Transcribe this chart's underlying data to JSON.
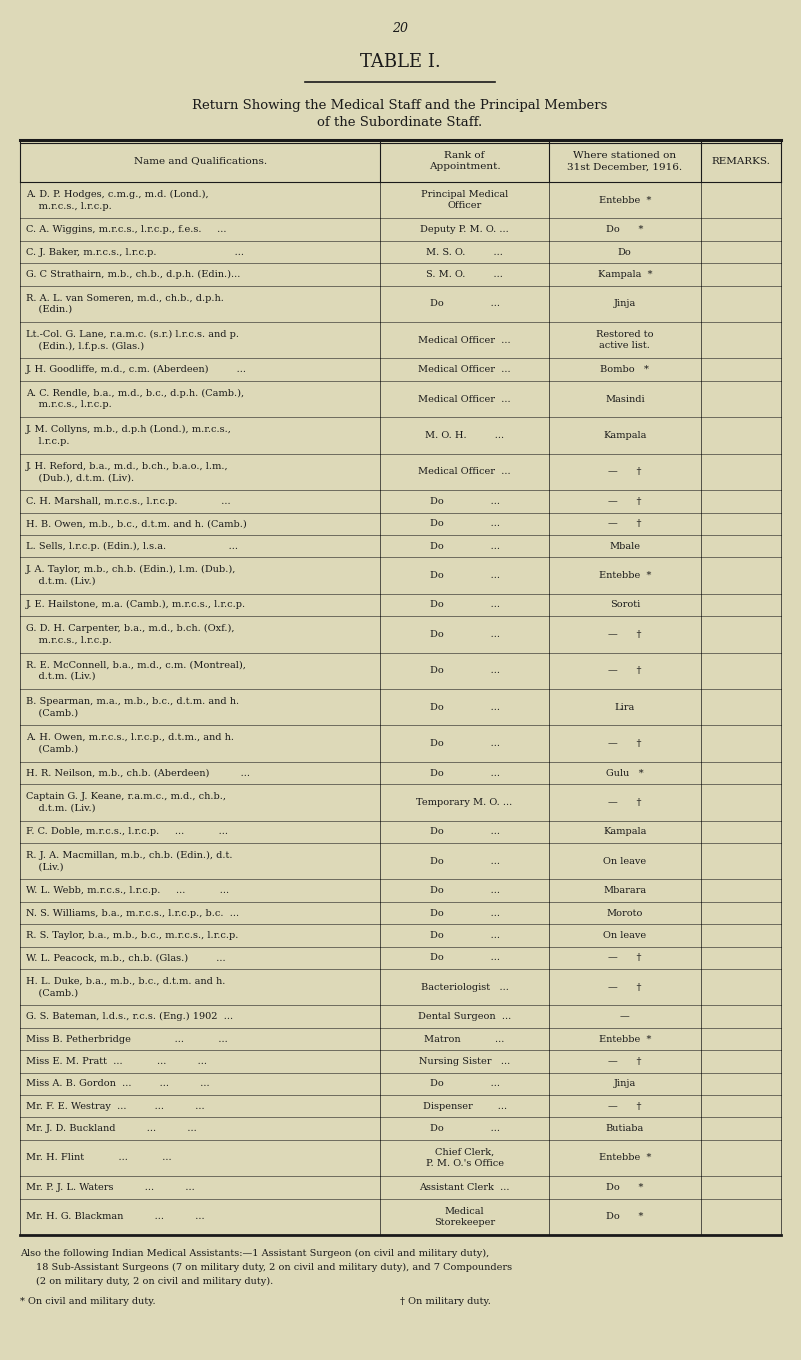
{
  "page_number": "20",
  "title": "TABLE I.",
  "subtitle_line1": "Return Showing the Medical Staff and the Principal Members",
  "subtitle_line2": "of the Subordinate Staff.",
  "bg_color": "#ddd9b8",
  "text_color": "#1a1a1a",
  "col_headers": [
    "Name and Qualifications.",
    "Rank of\nAppointment.",
    "Where stationed on\n31st December, 1916.",
    "REMARKS."
  ],
  "col_bounds": [
    0.025,
    0.475,
    0.685,
    0.875,
    0.975
  ],
  "rows": [
    [
      "A. D. P. Hodges, c.m.g., m.d. (Lond.),\n    m.r.c.s., l.r.c.p.",
      "Principal Medical\nOfficer",
      "Entebbe  *",
      ""
    ],
    [
      "C. A. Wiggins, m.r.c.s., l.r.c.p., f.e.s.     ...",
      "Deputy P. M. O. ...",
      "Do      *",
      ""
    ],
    [
      "C. J. Baker, m.r.c.s., l.r.c.p.                         ...",
      "M. S. O.         ...",
      "Do",
      ""
    ],
    [
      "G. C Strathairn, m.b., ch.b., d.p.h. (Edin.)...",
      "S. M. O.         ...",
      "Kampala  *",
      ""
    ],
    [
      "R. A. L. van Someren, m.d., ch.b., d.p.h.\n    (Edin.)",
      "Do               ...",
      "Jinja",
      ""
    ],
    [
      "Lt.-Col. G. Lane, r.a.m.c. (s.r.) l.r.c.s. and p.\n    (Edin.), l.f.p.s. (Glas.)",
      "Medical Officer  ...",
      "Restored to\nactive list.",
      ""
    ],
    [
      "J. H. Goodliffe, m.d., c.m. (Aberdeen)         ...",
      "Medical Officer  ...",
      "Bombo   *",
      ""
    ],
    [
      "A. C. Rendle, b.a., m.d., b.c., d.p.h. (Camb.),\n    m.r.c.s., l.r.c.p.",
      "Medical Officer  ...",
      "Masindi",
      ""
    ],
    [
      "J. M. Collyns, m.b., d.p.h (Lond.), m.r.c.s.,\n    l.r.c.p.",
      "M. O. H.         ...",
      "Kampala",
      ""
    ],
    [
      "J. H. Reford, b.a., m.d., b.ch., b.a.o., l.m.,\n    (Dub.), d.t.m. (Liv).",
      "Medical Officer  ...",
      "—      †",
      ""
    ],
    [
      "C. H. Marshall, m.r.c.s., l.r.c.p.              ...",
      "Do               ...",
      "—      †",
      ""
    ],
    [
      "H. B. Owen, m.b., b.c., d.t.m. and h. (Camb.)",
      "Do               ...",
      "—      †",
      ""
    ],
    [
      "L. Sells, l.r.c.p. (Edin.), l.s.a.                    ...",
      "Do               ...",
      "Mbale",
      ""
    ],
    [
      "J. A. Taylor, m.b., ch.b. (Edin.), l.m. (Dub.),\n    d.t.m. (Liv.)",
      "Do               ...",
      "Entebbe  *",
      ""
    ],
    [
      "J. E. Hailstone, m.a. (Camb.), m.r.c.s., l.r.c.p.",
      "Do               ...",
      "Soroti",
      ""
    ],
    [
      "G. D. H. Carpenter, b.a., m.d., b.ch. (Oxf.),\n    m.r.c.s., l.r.c.p.",
      "Do               ...",
      "—      †",
      ""
    ],
    [
      "R. E. McConnell, b.a., m.d., c.m. (Montreal),\n    d.t.m. (Liv.)",
      "Do               ...",
      "—      †",
      ""
    ],
    [
      "B. Spearman, m.a., m.b., b.c., d.t.m. and h.\n    (Camb.)",
      "Do               ...",
      "Lira",
      ""
    ],
    [
      "A. H. Owen, m.r.c.s., l.r.c.p., d.t.m., and h.\n    (Camb.)",
      "Do               ...",
      "—      †",
      ""
    ],
    [
      "H. R. Neilson, m.b., ch.b. (Aberdeen)          ...",
      "Do               ...",
      "Gulu   *",
      ""
    ],
    [
      "Captain G. J. Keane, r.a.m.c., m.d., ch.b.,\n    d.t.m. (Liv.)",
      "Temporary M. O. ...",
      "—      †",
      ""
    ],
    [
      "F. C. Doble, m.r.c.s., l.r.c.p.     ...           ...",
      "Do               ...",
      "Kampala",
      ""
    ],
    [
      "R. J. A. Macmillan, m.b., ch.b. (Edin.), d.t.\n    (Liv.)",
      "Do               ...",
      "On leave",
      ""
    ],
    [
      "W. L. Webb, m.r.c.s., l.r.c.p.     ...           ...",
      "Do               ...",
      "Mbarara",
      ""
    ],
    [
      "N. S. Williams, b.a., m.r.c.s., l.r.c.p., b.c.  ...",
      "Do               ...",
      "Moroto",
      ""
    ],
    [
      "R. S. Taylor, b.a., m.b., b.c., m.r.c.s., l.r.c.p.",
      "Do               ...",
      "On leave",
      ""
    ],
    [
      "W. L. Peacock, m.b., ch.b. (Glas.)         ...",
      "Do               ...",
      "—      †",
      ""
    ],
    [
      "H. L. Duke, b.a., m.b., b.c., d.t.m. and h.\n    (Camb.)",
      "Bacteriologist   ...",
      "—      †",
      ""
    ],
    [
      "G. S. Bateman, l.d.s., r.c.s. (Eng.) 1902  ...",
      "Dental Surgeon  ...",
      "—",
      ""
    ],
    [
      "Miss B. Petherbridge              ...           ...",
      "Matron           ...",
      "Entebbe  *",
      ""
    ],
    [
      "Miss E. M. Pratt  ...           ...          ...",
      "Nursing Sister   ...",
      "—      †",
      ""
    ],
    [
      "Miss A. B. Gordon  ...         ...          ...",
      "Do               ...",
      "Jinja",
      ""
    ],
    [
      "Mr. F. E. Westray  ...         ...          ...",
      "Dispenser        ...",
      "—      †",
      ""
    ],
    [
      "Mr. J. D. Buckland          ...          ...",
      "Do               ...",
      "Butiaba",
      ""
    ],
    [
      "Mr. H. Flint           ...           ...",
      "Chief Clerk,\nP. M. O.'s Office",
      "Entebbe  *",
      ""
    ],
    [
      "Mr. P. J. L. Waters          ...          ...",
      "Assistant Clerk  ...",
      "Do      *",
      ""
    ],
    [
      "Mr. H. G. Blackman          ...          ...",
      "Medical\nStorekeeper",
      "Do      *",
      ""
    ]
  ],
  "footer_text": "Also the following Indian Medical Assistants:—1 Assistant Surgeon (on civil and military duty),\n18 Sub-Assistant Surgeons (7 on military duty, 2 on civil and military duty), and 7 Compounders\n(2 on military duty, 2 on civil and military duty).",
  "footer_note_left": "* On civil and military duty.",
  "footer_note_right": "† On military duty."
}
